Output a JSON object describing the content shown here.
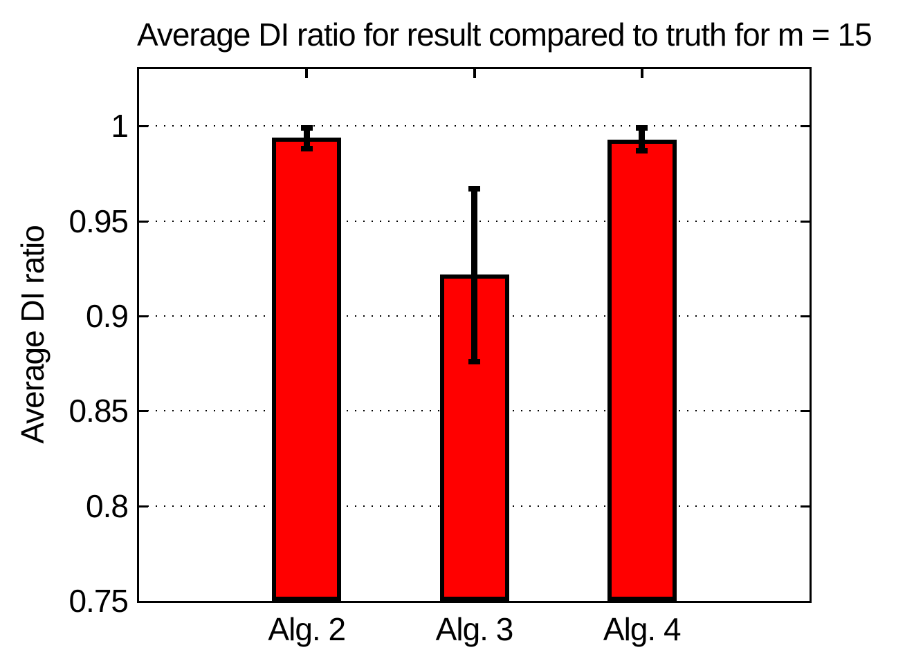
{
  "title": "Average DI ratio for result compared to truth for m = 15",
  "chart_data": {
    "type": "bar",
    "title": "Average DI ratio for result compared to truth for m = 15",
    "xlabel": "",
    "ylabel": "Average DI ratio",
    "categories": [
      "Alg. 2",
      "Alg. 3",
      "Alg. 4"
    ],
    "values": [
      0.994,
      0.922,
      0.993
    ],
    "error_top": [
      0.999,
      0.967,
      0.999
    ],
    "error_bottom": [
      0.988,
      0.876,
      0.987
    ],
    "ylim": [
      0.75,
      1.03
    ],
    "yticks": [
      0.75,
      0.8,
      0.85,
      0.9,
      0.95,
      1
    ],
    "ytick_labels": [
      "0.75",
      "0.8",
      "0.85",
      "0.9",
      "0.95",
      "1"
    ],
    "grid": "y-dotted",
    "legend": "none",
    "bar_color": "#ff0000",
    "bar_edge_color": "#000000",
    "error_color": "#000000",
    "background": "#ffffff"
  }
}
